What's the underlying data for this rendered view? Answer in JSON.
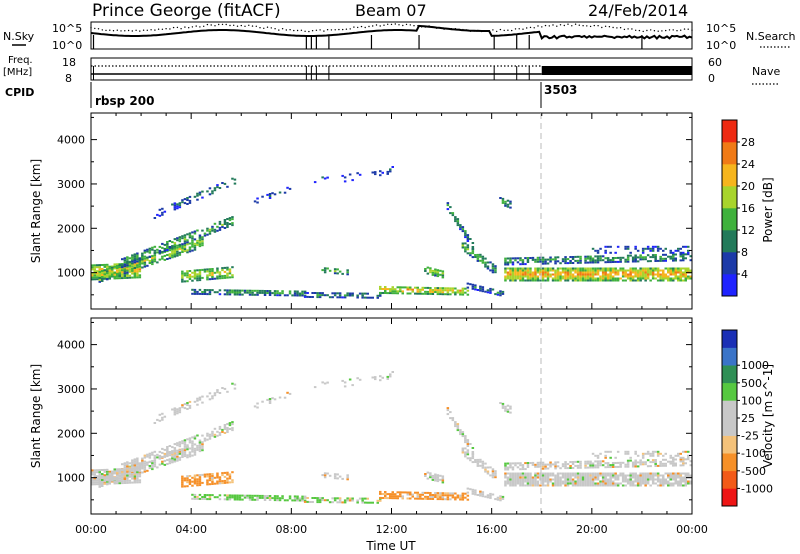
{
  "header": {
    "station": "Prince George (fitACF)",
    "beam": "Beam 07",
    "date": "24/Feb/2014"
  },
  "aux_panel": {
    "nsky_label": "N.Sky",
    "nsky_top": "10^5",
    "nsky_bottom": "10^0",
    "nsearch_label": "N.Search",
    "nsearch_top": "10^5",
    "nsearch_bottom": "10^0",
    "freq_label": "Freq.",
    "freq_unit": "[MHz]",
    "freq_top": "18",
    "freq_bottom": "8",
    "nave_label": "Nave",
    "nave_top": "60",
    "nave_bottom": "0",
    "cpid_label": "CPID",
    "cpid_1": "rbsp 200",
    "cpid_2": "3503"
  },
  "colors": {
    "power_scale": [
      "#1f23ff",
      "#1c3aa8",
      "#227a5a",
      "#3fb13c",
      "#a8d42c",
      "#f6b51d",
      "#f07a16",
      "#ee2a12"
    ],
    "velocity_scale": [
      "#ee1515",
      "#f25a18",
      "#f69028",
      "#f4c27a",
      "#c8c8c8",
      "#c8c8c8",
      "#56c840",
      "#2f8f55",
      "#3a74c8",
      "#1a2fb5"
    ]
  },
  "chart_data": [
    {
      "type": "heatmap",
      "name": "power",
      "xlabel": "",
      "ylabel": "Slant Range [km]",
      "yticks": [
        1000,
        2000,
        3000,
        4000
      ],
      "ylim": [
        180,
        4600
      ],
      "xlim_hours": [
        0,
        24
      ],
      "colorbar_label": "Power [dB]",
      "colorbar_ticks": [
        "4",
        "8",
        "12",
        "16",
        "20",
        "24",
        "28"
      ],
      "colorbar_range": [
        0,
        32
      ],
      "features": [
        {
          "x": 0.5,
          "y": 1000,
          "value": 24
        },
        {
          "x": 3.0,
          "y": 1300,
          "value": 18
        },
        {
          "x": 5.5,
          "y": 600,
          "value": 14
        },
        {
          "x": 9.5,
          "y": 450,
          "value": 12
        },
        {
          "x": 13.5,
          "y": 550,
          "value": 22
        },
        {
          "x": 15.0,
          "y": 1800,
          "value": 10
        },
        {
          "x": 20.0,
          "y": 950,
          "value": 24
        },
        {
          "x": 22.5,
          "y": 1200,
          "value": 10
        }
      ]
    },
    {
      "type": "heatmap",
      "name": "velocity",
      "xlabel": "Time UT",
      "ylabel": "Slant Range [km]",
      "yticks": [
        1000,
        2000,
        3000,
        4000
      ],
      "ylim": [
        180,
        4600
      ],
      "xlim_hours": [
        0,
        24
      ],
      "xticks": [
        "00:00",
        "04:00",
        "08:00",
        "12:00",
        "16:00",
        "20:00",
        "00:00"
      ],
      "colorbar_label": "Velocity [m s^-1]",
      "colorbar_ticks": [
        "-1000",
        "-500",
        "-100",
        "-25",
        "25",
        "100",
        "500",
        "1000"
      ],
      "features": [
        {
          "x": 1.0,
          "y": 1100,
          "value": 0
        },
        {
          "x": 4.5,
          "y": 1000,
          "value": -300
        },
        {
          "x": 6.0,
          "y": 500,
          "value": 150
        },
        {
          "x": 13.5,
          "y": 600,
          "value": -200
        },
        {
          "x": 20.0,
          "y": 1100,
          "value": 0
        }
      ]
    }
  ]
}
